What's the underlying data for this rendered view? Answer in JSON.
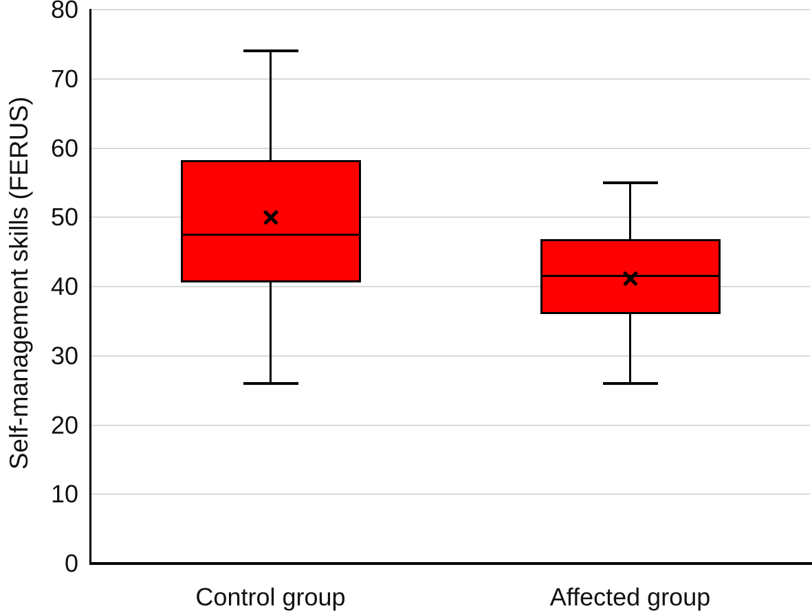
{
  "chart_data": {
    "type": "boxplot",
    "ylabel": "Self-management skills (FERUS)",
    "xlabel": "",
    "ylim": [
      0,
      80
    ],
    "yticks": [
      0,
      10,
      20,
      30,
      40,
      50,
      60,
      70,
      80
    ],
    "grid": "horizontal",
    "legend": "none",
    "gridline_color": "#d9d9d9",
    "axis_color": "#000000",
    "box_fill_color": "#ff0000",
    "box_border_color": "#000000",
    "mean_marker_glyph": "✕",
    "categories": [
      "Control group",
      "Affected group"
    ],
    "series": [
      {
        "name": "Control group",
        "whisker_low": 26,
        "q1": 40.6,
        "median": 47.5,
        "q3": 58.3,
        "whisker_high": 74,
        "mean": 50
      },
      {
        "name": "Affected group",
        "whisker_low": 26,
        "q1": 36,
        "median": 41.5,
        "q3": 46.8,
        "whisker_high": 55,
        "mean": 41.2
      }
    ]
  }
}
